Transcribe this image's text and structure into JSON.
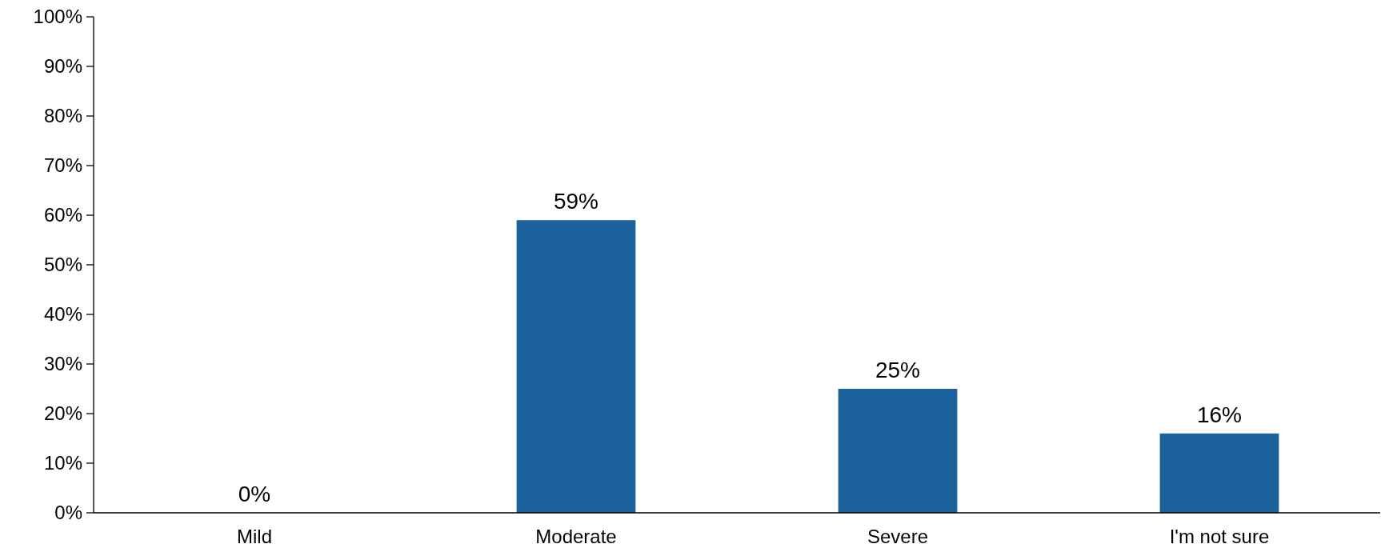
{
  "chart_data": {
    "type": "bar",
    "categories": [
      "Mild",
      "Moderate",
      "Severe",
      "I'm not sure"
    ],
    "values": [
      0,
      59,
      25,
      16
    ],
    "color": "#1c629c",
    "value_labels": [
      "0%",
      "59%",
      "25%",
      "16%"
    ],
    "ylim": [
      0,
      100
    ],
    "yticks": [
      {
        "value": 0,
        "label": "0%"
      },
      {
        "value": 10,
        "label": "10%"
      },
      {
        "value": 20,
        "label": "20%"
      },
      {
        "value": 30,
        "label": "30%"
      },
      {
        "value": 40,
        "label": "40%"
      },
      {
        "value": 50,
        "label": "50%"
      },
      {
        "value": 60,
        "label": "60%"
      },
      {
        "value": 70,
        "label": "70%"
      },
      {
        "value": 80,
        "label": "80%"
      },
      {
        "value": 90,
        "label": "90%"
      },
      {
        "value": 100,
        "label": "100%"
      }
    ],
    "grid": false
  }
}
